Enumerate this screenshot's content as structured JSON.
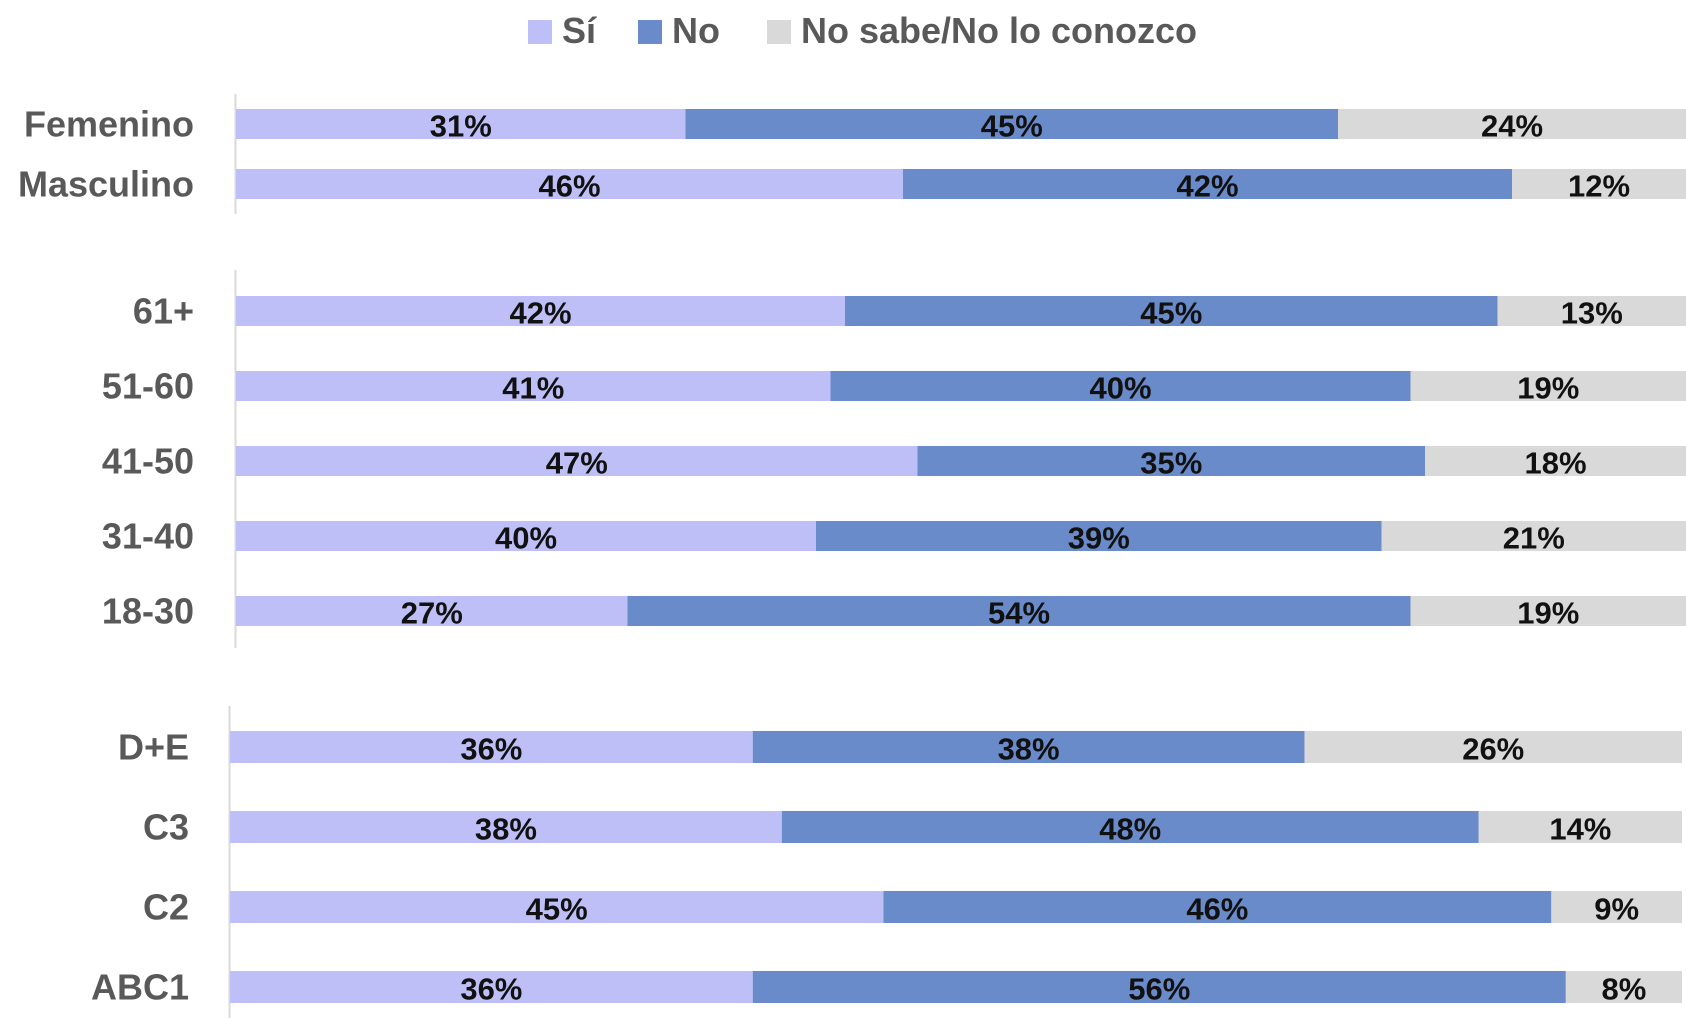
{
  "chart_data": {
    "type": "bar",
    "orientation": "horizontal",
    "stacked": true,
    "title": "",
    "xlabel": "",
    "ylabel": "",
    "xlim": [
      0,
      100
    ],
    "grid": false,
    "legend": {
      "position": "top-center",
      "entries": [
        {
          "name": "Sí",
          "color": "#bfbff8"
        },
        {
          "name": "No",
          "color": "#6a8bca"
        },
        {
          "name": "No sabe/No lo conozco",
          "color": "#d9d9d9"
        }
      ]
    },
    "groups": [
      {
        "categories": [
          "Femenino",
          "Masculino"
        ],
        "series": [
          {
            "name": "Sí",
            "values": [
              31,
              46
            ],
            "labels": [
              "31%",
              "46%"
            ]
          },
          {
            "name": "No",
            "values": [
              45,
              42
            ],
            "labels": [
              "45%",
              "42%"
            ]
          },
          {
            "name": "No sabe/No lo conozco",
            "values": [
              24,
              12
            ],
            "labels": [
              "24%",
              "12%"
            ]
          }
        ]
      },
      {
        "categories": [
          "61+",
          "51-60",
          "41-50",
          "31-40",
          "18-30"
        ],
        "series": [
          {
            "name": "Sí",
            "values": [
              42,
              41,
              47,
              40,
              27
            ],
            "labels": [
              "42%",
              "41%",
              "47%",
              "40%",
              "27%"
            ]
          },
          {
            "name": "No",
            "values": [
              45,
              40,
              35,
              39,
              54
            ],
            "labels": [
              "45%",
              "40%",
              "35%",
              "39%",
              "54%"
            ]
          },
          {
            "name": "No sabe/No lo conozco",
            "values": [
              13,
              19,
              18,
              21,
              19
            ],
            "labels": [
              "13%",
              "19%",
              "18%",
              "21%",
              "19%"
            ]
          }
        ]
      },
      {
        "categories": [
          "D+E",
          "C3",
          "C2",
          "ABC1"
        ],
        "series": [
          {
            "name": "Sí",
            "values": [
              36,
              38,
              45,
              36
            ],
            "labels": [
              "36%",
              "38%",
              "45%",
              "36%"
            ]
          },
          {
            "name": "No",
            "values": [
              38,
              48,
              46,
              56
            ],
            "labels": [
              "38%",
              "48%",
              "46%",
              "56%"
            ]
          },
          {
            "name": "No sabe/No lo conozco",
            "values": [
              26,
              14,
              9,
              8
            ],
            "labels": [
              "26%",
              "14%",
              "9%",
              "8%"
            ]
          }
        ]
      }
    ]
  }
}
